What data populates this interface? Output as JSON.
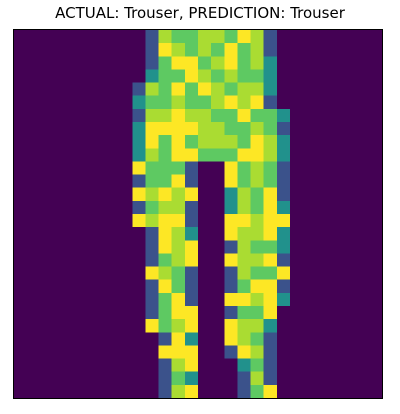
{
  "figure": {
    "title": "ACTUAL: Trouser, PREDICTION: Trouser"
  },
  "image": {
    "subject": "trouser",
    "colormap": "viridis",
    "grid": "28x28",
    "background_color": "#440154",
    "palette": [
      "#440154",
      "#3b528b",
      "#21918c",
      "#5ec962",
      "#aadc32",
      "#fde725"
    ]
  }
}
